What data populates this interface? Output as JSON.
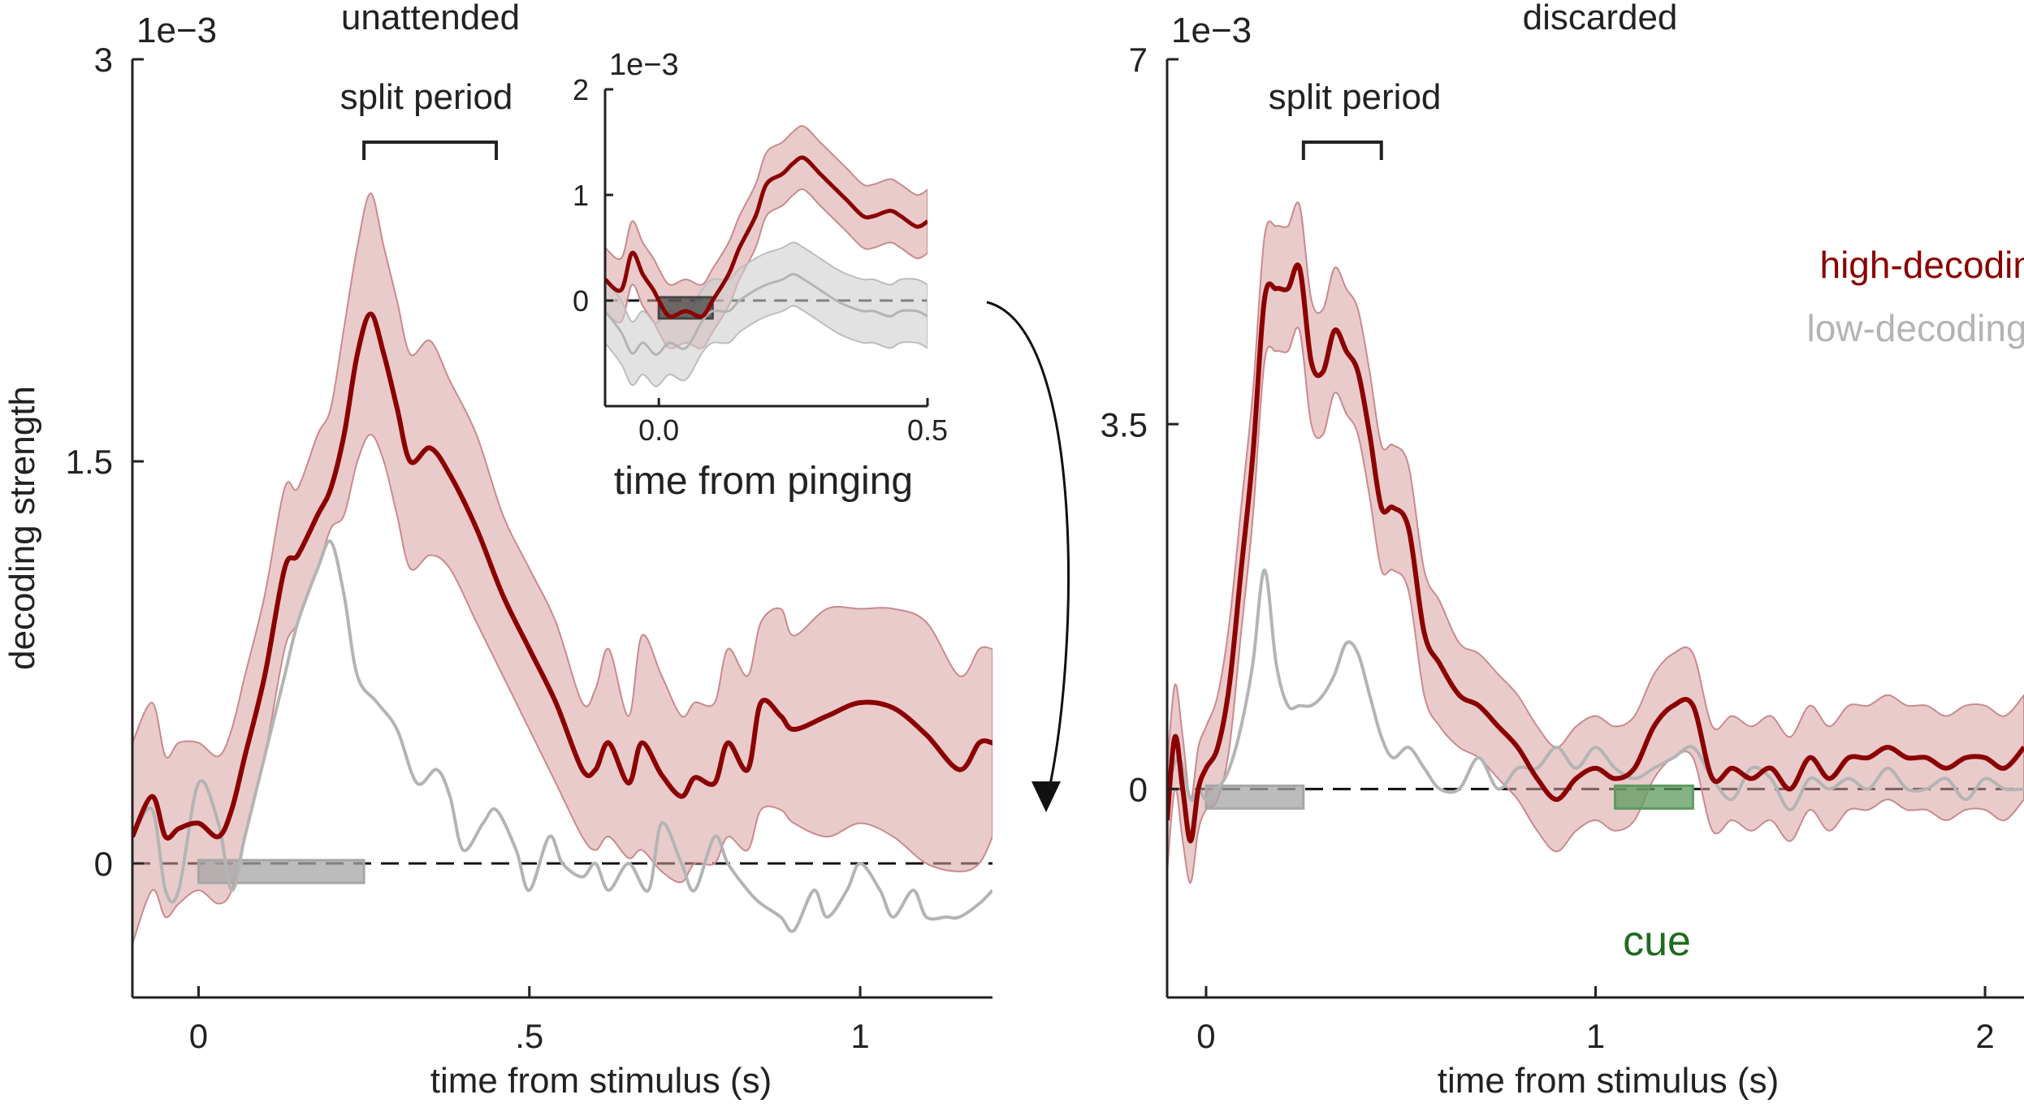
{
  "colors": {
    "high": "#8b0000",
    "high_band": "#d8a0a3",
    "low": "#b4b4b4",
    "low_band": "#cfcfcf",
    "stimulus_bar": "#a6a6a6",
    "cue_bar": "#5e9a5e",
    "cue_text": "#1f6b1f",
    "axis": "#222222"
  },
  "legend": {
    "high": "high-decoding",
    "low": "low-decoding"
  },
  "chart_data": [
    {
      "type": "line",
      "title": "unattended",
      "xlabel": "time from stimulus (s)",
      "ylabel": "decoding strength",
      "exponent_label": "1e−3",
      "xlim": [
        -0.1,
        1.2
      ],
      "ylim": [
        -0.0005,
        0.003
      ],
      "xticks": [
        0,
        0.5,
        1
      ],
      "xtick_labels": [
        "0",
        ".5",
        "1"
      ],
      "yticks": [
        0,
        0.0015,
        0.003
      ],
      "ytick_labels": [
        "0",
        "1.5",
        "3"
      ],
      "annotation": "split period",
      "split_period": [
        0.25,
        0.45
      ],
      "stimulus_bar": [
        0.0,
        0.25
      ],
      "series": [
        {
          "name": "high-decoding",
          "x": [
            -0.1,
            -0.07,
            -0.05,
            -0.03,
            0.0,
            0.03,
            0.05,
            0.07,
            0.1,
            0.13,
            0.15,
            0.18,
            0.2,
            0.22,
            0.24,
            0.26,
            0.28,
            0.3,
            0.32,
            0.35,
            0.38,
            0.42,
            0.46,
            0.5,
            0.54,
            0.58,
            0.6,
            0.62,
            0.65,
            0.67,
            0.7,
            0.73,
            0.75,
            0.78,
            0.8,
            0.83,
            0.85,
            0.88,
            0.9,
            0.95,
            1.0,
            1.05,
            1.1,
            1.15,
            1.18,
            1.2
          ],
          "y": [
            0.0001,
            0.00025,
            0.0001,
            0.00013,
            0.00015,
            0.0001,
            0.0002,
            0.0004,
            0.0007,
            0.0011,
            0.00115,
            0.0013,
            0.0014,
            0.0016,
            0.0019,
            0.00205,
            0.0019,
            0.0017,
            0.0015,
            0.00155,
            0.00145,
            0.00125,
            0.001,
            0.0008,
            0.0006,
            0.00035,
            0.00035,
            0.00045,
            0.0003,
            0.00045,
            0.00033,
            0.00025,
            0.00032,
            0.0003,
            0.00045,
            0.00035,
            0.0006,
            0.00055,
            0.0005,
            0.00055,
            0.0006,
            0.00058,
            0.00048,
            0.00035,
            0.00045,
            0.00045
          ],
          "lower": [
            -0.0003,
            -0.0001,
            -0.0002,
            -0.00015,
            -0.0001,
            -0.00015,
            -0.0001,
            0.0001,
            0.0004,
            0.0008,
            0.0009,
            0.0011,
            0.00125,
            0.0013,
            0.0015,
            0.0016,
            0.0015,
            0.0013,
            0.0011,
            0.00115,
            0.0011,
            0.0009,
            0.0007,
            0.0005,
            0.0003,
            0.0001,
            5e-05,
            0.0001,
            2e-05,
            5e-05,
            -3e-05,
            -7e-05,
            0.0,
            0.0,
            0.0001,
            5e-05,
            0.0002,
            0.0002,
            0.00015,
            0.0001,
            0.00015,
            0.0001,
            0.0,
            -3e-05,
            0.0,
            0.0001
          ],
          "upper": [
            0.00045,
            0.0006,
            0.0004,
            0.00045,
            0.00045,
            0.0004,
            0.0005,
            0.0007,
            0.001,
            0.0014,
            0.0014,
            0.0016,
            0.0017,
            0.002,
            0.0023,
            0.0025,
            0.0023,
            0.0021,
            0.0019,
            0.00195,
            0.0018,
            0.0016,
            0.0013,
            0.0011,
            0.0009,
            0.0006,
            0.00065,
            0.0008,
            0.00055,
            0.00085,
            0.0007,
            0.00055,
            0.0006,
            0.0006,
            0.0008,
            0.0007,
            0.0009,
            0.00095,
            0.00085,
            0.00095,
            0.00095,
            0.00095,
            0.0009,
            0.0007,
            0.0008,
            0.0008
          ]
        },
        {
          "name": "low-decoding",
          "x": [
            -0.1,
            -0.07,
            -0.05,
            -0.03,
            0.0,
            0.03,
            0.05,
            0.07,
            0.1,
            0.13,
            0.15,
            0.18,
            0.2,
            0.22,
            0.24,
            0.27,
            0.3,
            0.33,
            0.36,
            0.38,
            0.4,
            0.43,
            0.45,
            0.48,
            0.5,
            0.53,
            0.55,
            0.58,
            0.6,
            0.62,
            0.65,
            0.68,
            0.7,
            0.73,
            0.75,
            0.78,
            0.8,
            0.83,
            0.85,
            0.88,
            0.9,
            0.93,
            0.95,
            0.98,
            1.0,
            1.03,
            1.05,
            1.08,
            1.1,
            1.13,
            1.15,
            1.18,
            1.2
          ],
          "y": [
            0.0001,
            0.0002,
            -0.0001,
            -0.0001,
            0.0003,
            0.00015,
            -0.0001,
            0.0001,
            0.0004,
            0.0007,
            0.0009,
            0.0011,
            0.0012,
            0.001,
            0.0007,
            0.0006,
            0.0005,
            0.0003,
            0.00035,
            0.00025,
            5e-05,
            0.00015,
            0.0002,
            5e-05,
            -0.0001,
            0.0001,
            0.0,
            -5e-05,
            0.0,
            -0.0001,
            0.0,
            -0.0001,
            0.00015,
            0.0,
            -0.0001,
            0.0001,
            0.0,
            -0.0001,
            -0.00015,
            -0.0002,
            -0.00025,
            -0.0001,
            -0.0002,
            -0.0001,
            0.0,
            -0.0001,
            -0.0002,
            -0.0001,
            -0.0002,
            -0.0002,
            -0.0002,
            -0.00015,
            -0.0001
          ]
        }
      ]
    },
    {
      "type": "line",
      "title": "",
      "xlabel": "time from pinging",
      "ylabel": "",
      "exponent_label": "1e−3",
      "xlim": [
        -0.1,
        0.5
      ],
      "ylim": [
        -0.001,
        0.002
      ],
      "xticks": [
        0.0,
        0.5
      ],
      "xtick_labels": [
        "0.0",
        "0.5"
      ],
      "yticks": [
        0,
        0.001,
        0.002
      ],
      "ytick_labels": [
        "0",
        "1",
        "2"
      ],
      "ping_bar": [
        0.0,
        0.1
      ],
      "series": [
        {
          "name": "high-decoding",
          "x": [
            -0.1,
            -0.07,
            -0.05,
            -0.03,
            -0.01,
            0.0,
            0.02,
            0.05,
            0.08,
            0.1,
            0.13,
            0.15,
            0.18,
            0.2,
            0.23,
            0.25,
            0.27,
            0.3,
            0.33,
            0.35,
            0.38,
            0.4,
            0.43,
            0.45,
            0.48,
            0.5
          ],
          "y": [
            0.0002,
            0.0001,
            0.00045,
            0.00025,
            0.0001,
            0.0,
            -0.00015,
            -0.0001,
            -0.00015,
            0.0,
            0.00025,
            0.0005,
            0.0008,
            0.0011,
            0.0012,
            0.0013,
            0.00135,
            0.0012,
            0.00105,
            0.00095,
            0.0008,
            0.0008,
            0.00085,
            0.0008,
            0.0007,
            0.00075
          ],
          "lower": [
            -0.0001,
            -0.0002,
            0.00015,
            -5e-05,
            -0.0002,
            -0.0003,
            -0.00045,
            -0.0004,
            -0.00045,
            -0.0003,
            -5e-05,
            0.0002,
            0.0005,
            0.0008,
            0.0009,
            0.001,
            0.00105,
            0.0009,
            0.00075,
            0.00065,
            0.0005,
            0.0005,
            0.00055,
            0.0005,
            0.0004,
            0.00045
          ],
          "upper": [
            0.0005,
            0.0004,
            0.00075,
            0.00055,
            0.0004,
            0.0003,
            0.00015,
            0.0002,
            0.00015,
            0.0003,
            0.00055,
            0.0008,
            0.0011,
            0.0014,
            0.0015,
            0.0016,
            0.00165,
            0.0015,
            0.00135,
            0.00125,
            0.0011,
            0.0011,
            0.00115,
            0.0011,
            0.001,
            0.00105
          ]
        },
        {
          "name": "low-decoding",
          "x": [
            -0.1,
            -0.07,
            -0.05,
            -0.03,
            -0.01,
            0.0,
            0.02,
            0.05,
            0.08,
            0.1,
            0.13,
            0.15,
            0.18,
            0.2,
            0.23,
            0.25,
            0.27,
            0.3,
            0.33,
            0.35,
            0.38,
            0.4,
            0.43,
            0.45,
            0.48,
            0.5
          ],
          "y": [
            -0.0001,
            -0.0003,
            -0.0005,
            -0.0004,
            -0.0005,
            -0.0005,
            -0.0004,
            -0.00045,
            -0.0002,
            -0.0001,
            -0.0001,
            0.0,
            0.0001,
            0.00015,
            0.0002,
            0.00025,
            0.0002,
            0.0001,
            0.0,
            -5e-05,
            -0.0001,
            -0.0001,
            -0.00015,
            -0.0001,
            -0.0001,
            -0.00015
          ],
          "lower": [
            -0.0004,
            -0.0006,
            -0.0008,
            -0.0007,
            -0.0008,
            -0.0008,
            -0.0007,
            -0.00075,
            -0.0005,
            -0.0004,
            -0.0004,
            -0.0003,
            -0.0002,
            -0.00015,
            -0.0001,
            -5e-05,
            -0.0001,
            -0.0002,
            -0.0003,
            -0.00035,
            -0.0004,
            -0.0004,
            -0.00045,
            -0.0004,
            -0.0004,
            -0.00045
          ],
          "upper": [
            0.0002,
            0.0,
            -0.0002,
            -0.0001,
            -0.0002,
            -0.0002,
            -0.0001,
            -0.00015,
            0.0001,
            0.0002,
            0.0002,
            0.0003,
            0.0004,
            0.00045,
            0.0005,
            0.00055,
            0.0005,
            0.0004,
            0.0003,
            0.00025,
            0.0002,
            0.0002,
            0.00015,
            0.0002,
            0.0002,
            0.00015
          ]
        }
      ]
    },
    {
      "type": "line",
      "title": "discarded",
      "xlabel": "time from stimulus (s)",
      "ylabel": "",
      "exponent_label": "1e−3",
      "xlim": [
        -0.1,
        2.1
      ],
      "ylim": [
        -0.002,
        0.007
      ],
      "xticks": [
        0,
        1,
        2
      ],
      "xtick_labels": [
        "0",
        "1",
        "2"
      ],
      "yticks": [
        0,
        0.0035,
        0.007
      ],
      "ytick_labels": [
        "0",
        "3.5",
        "7"
      ],
      "annotation": "split period",
      "split_period": [
        0.25,
        0.45
      ],
      "stimulus_bar": [
        0.0,
        0.25
      ],
      "cue_bar": [
        1.05,
        1.25
      ],
      "cue_label": "cue",
      "series": [
        {
          "name": "high-decoding",
          "x": [
            -0.1,
            -0.08,
            -0.06,
            -0.04,
            -0.02,
            0.0,
            0.03,
            0.06,
            0.09,
            0.12,
            0.15,
            0.18,
            0.21,
            0.24,
            0.27,
            0.3,
            0.33,
            0.36,
            0.39,
            0.42,
            0.45,
            0.48,
            0.52,
            0.56,
            0.6,
            0.65,
            0.7,
            0.75,
            0.8,
            0.85,
            0.9,
            0.95,
            1.0,
            1.05,
            1.1,
            1.15,
            1.2,
            1.25,
            1.3,
            1.35,
            1.4,
            1.45,
            1.5,
            1.55,
            1.6,
            1.65,
            1.7,
            1.75,
            1.8,
            1.85,
            1.9,
            1.95,
            2.0,
            2.05,
            2.1
          ],
          "y": [
            -0.0003,
            0.0005,
            0.0,
            -0.0005,
            0.0,
            0.0002,
            0.0004,
            0.001,
            0.0021,
            0.0032,
            0.0047,
            0.0048,
            0.0048,
            0.005,
            0.0041,
            0.004,
            0.0044,
            0.0042,
            0.004,
            0.0034,
            0.0027,
            0.0027,
            0.0025,
            0.0015,
            0.0012,
            0.0009,
            0.0008,
            0.0006,
            0.0004,
            0.0001,
            -0.0001,
            0.0001,
            0.0002,
            0.0001,
            0.0002,
            0.0006,
            0.0008,
            0.0008,
            0.0001,
            0.0002,
            0.0001,
            0.0002,
            0.0,
            0.0003,
            0.0001,
            0.0003,
            0.0003,
            0.0004,
            0.0003,
            0.0003,
            0.0002,
            0.0003,
            0.0003,
            0.0002,
            0.0004
          ],
          "lower": [
            -0.0008,
            0.0,
            -0.0005,
            -0.0009,
            -0.0004,
            -0.0002,
            -0.0001,
            0.0004,
            0.0015,
            0.0026,
            0.0041,
            0.0042,
            0.0042,
            0.0044,
            0.0035,
            0.0034,
            0.0038,
            0.0036,
            0.0034,
            0.0028,
            0.0021,
            0.0021,
            0.0019,
            0.0009,
            0.0006,
            0.0004,
            0.0003,
            0.0001,
            -0.0001,
            -0.0004,
            -0.0006,
            -0.0004,
            -0.0003,
            -0.0004,
            -0.0003,
            0.0001,
            0.0003,
            0.0003,
            -0.0004,
            -0.0003,
            -0.0004,
            -0.0003,
            -0.0005,
            -0.0002,
            -0.0004,
            -0.0002,
            -0.0002,
            -0.0001,
            -0.0002,
            -0.0002,
            -0.0003,
            -0.0002,
            -0.0002,
            -0.0003,
            -0.0001
          ],
          "upper": [
            0.0002,
            0.001,
            0.0005,
            -0.0001,
            0.0004,
            0.0006,
            0.0009,
            0.0016,
            0.0027,
            0.0038,
            0.0053,
            0.0054,
            0.0054,
            0.0056,
            0.0047,
            0.0046,
            0.005,
            0.0048,
            0.0046,
            0.004,
            0.0033,
            0.0033,
            0.0031,
            0.0021,
            0.0018,
            0.0014,
            0.0013,
            0.0011,
            0.0009,
            0.0006,
            0.0004,
            0.0006,
            0.0007,
            0.0006,
            0.0007,
            0.0011,
            0.0013,
            0.0013,
            0.0006,
            0.0007,
            0.0006,
            0.0007,
            0.0005,
            0.0008,
            0.0006,
            0.0008,
            0.0008,
            0.0009,
            0.0008,
            0.0008,
            0.0007,
            0.0008,
            0.0008,
            0.0007,
            0.0009
          ]
        },
        {
          "name": "low-decoding",
          "x": [
            -0.1,
            -0.07,
            -0.04,
            -0.02,
            0.0,
            0.03,
            0.06,
            0.09,
            0.12,
            0.15,
            0.18,
            0.21,
            0.24,
            0.27,
            0.3,
            0.33,
            0.36,
            0.39,
            0.42,
            0.45,
            0.48,
            0.52,
            0.56,
            0.6,
            0.65,
            0.7,
            0.75,
            0.8,
            0.85,
            0.9,
            0.95,
            1.0,
            1.05,
            1.1,
            1.15,
            1.2,
            1.25,
            1.3,
            1.35,
            1.4,
            1.45,
            1.5,
            1.55,
            1.6,
            1.65,
            1.7,
            1.75,
            1.8,
            1.85,
            1.9,
            1.95,
            2.0,
            2.05,
            2.1
          ],
          "y": [
            0.0,
            0.0003,
            -0.0001,
            0.0,
            -0.0001,
            0.0,
            0.0002,
            0.0006,
            0.0012,
            0.0021,
            0.0012,
            0.0008,
            0.0008,
            0.0008,
            0.0009,
            0.0011,
            0.0014,
            0.0013,
            0.0009,
            0.0005,
            0.0003,
            0.0004,
            0.0002,
            0.0,
            0.0,
            0.0003,
            0.0,
            0.0002,
            0.0002,
            0.0004,
            0.0002,
            0.0004,
            0.0002,
            0.0001,
            0.0002,
            0.0003,
            0.0004,
            0.0001,
            -0.0001,
            0.0002,
            0.0001,
            -0.0002,
            0.0001,
            0.0,
            0.0001,
            0.0,
            0.0002,
            0.0,
            0.0,
            0.0001,
            -0.0001,
            0.0001,
            0.0,
            0.0
          ],
          "lower": [],
          "upper": []
        }
      ]
    }
  ]
}
